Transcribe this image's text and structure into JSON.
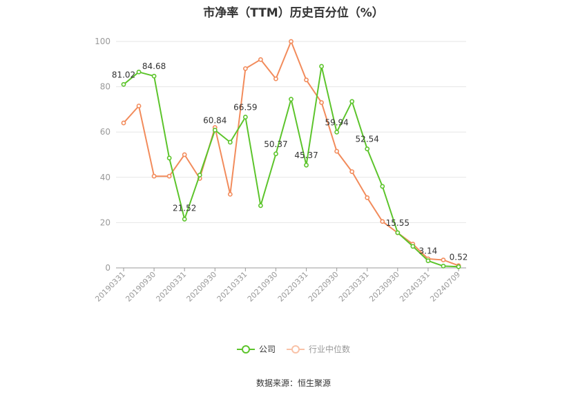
{
  "chart_data": {
    "type": "line",
    "title": "市净率（TTM）历史百分位（%）",
    "x": [
      "20190331",
      "20190630",
      "20190930",
      "20191231",
      "20200331",
      "20200630",
      "20200930",
      "20201231",
      "20210331",
      "20210630",
      "20210930",
      "20211231",
      "20220331",
      "20220630",
      "20220930",
      "20221231",
      "20230331",
      "20230630",
      "20230930",
      "20231231",
      "20240331",
      "20240630",
      "20240709"
    ],
    "x_tick_labels": [
      "20190331",
      "20190930",
      "20200331",
      "20200930",
      "20210331",
      "20210930",
      "20220331",
      "20220930",
      "20230331",
      "20230930",
      "20240331",
      "20240709"
    ],
    "y_ticks": [
      0,
      20,
      40,
      60,
      80,
      100
    ],
    "ylim": [
      0,
      100
    ],
    "grid": true,
    "legend_position": "bottom",
    "series": [
      {
        "name": "公司",
        "color": "#5cc42b",
        "values": [
          81.02,
          86.5,
          84.68,
          48.5,
          21.52,
          41.0,
          60.84,
          55.5,
          66.59,
          27.5,
          50.37,
          74.5,
          45.37,
          89.0,
          59.94,
          73.5,
          52.54,
          36.0,
          15.55,
          9.5,
          3.14,
          0.8,
          0.52
        ],
        "labeled_points": [
          {
            "index": 0,
            "label": "81.02"
          },
          {
            "index": 2,
            "label": "84.68"
          },
          {
            "index": 4,
            "label": "21.52"
          },
          {
            "index": 6,
            "label": "60.84"
          },
          {
            "index": 8,
            "label": "66.59"
          },
          {
            "index": 10,
            "label": "50.37"
          },
          {
            "index": 12,
            "label": "45.37"
          },
          {
            "index": 14,
            "label": "59.94"
          },
          {
            "index": 16,
            "label": "52.54"
          },
          {
            "index": 18,
            "label": "15.55"
          },
          {
            "index": 20,
            "label": "3.14"
          },
          {
            "index": 22,
            "label": "0.52"
          }
        ]
      },
      {
        "name": "行业中位数",
        "color": "#f28b5b",
        "values": [
          64.0,
          71.5,
          40.5,
          40.5,
          50.0,
          39.5,
          62.0,
          32.5,
          88.0,
          92.0,
          83.5,
          100.0,
          83.0,
          73.0,
          51.5,
          42.5,
          31.0,
          20.5,
          15.5,
          10.5,
          4.0,
          3.5,
          1.0
        ]
      }
    ]
  },
  "legend": {
    "company": "公司",
    "industry": "行业中位数"
  },
  "source": "数据来源：恒生聚源"
}
